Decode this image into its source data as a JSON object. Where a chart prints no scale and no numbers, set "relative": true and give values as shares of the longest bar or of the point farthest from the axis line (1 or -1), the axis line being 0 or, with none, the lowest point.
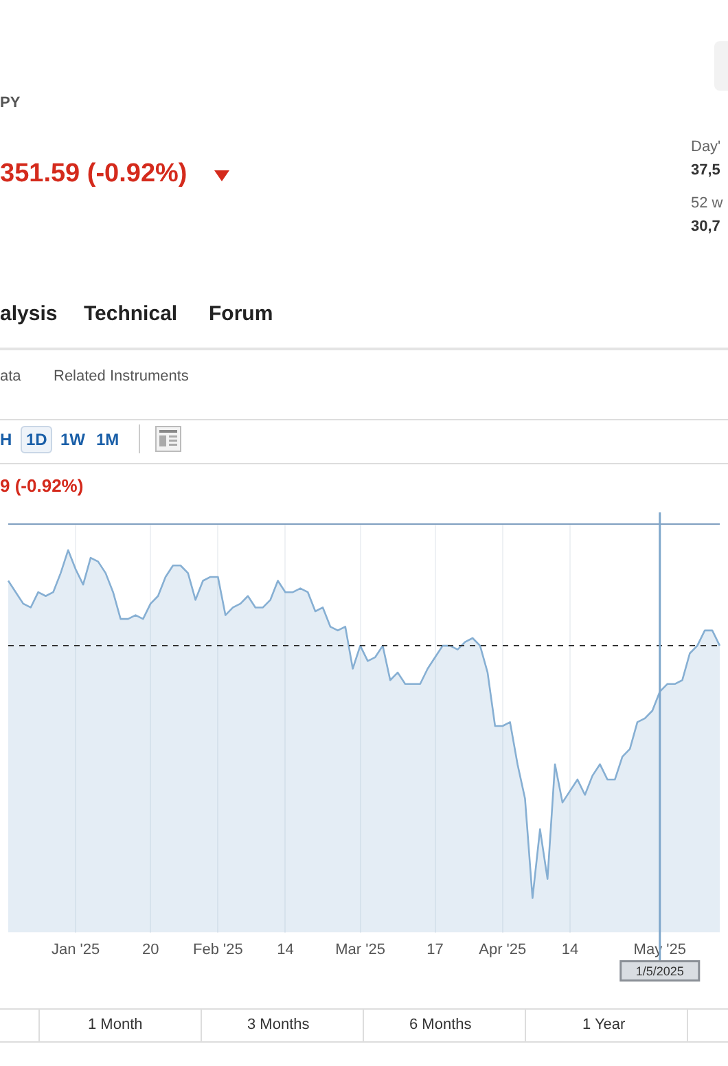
{
  "chart_data": {
    "type": "area",
    "relative": true,
    "grid": "x",
    "legend": false,
    "categories": [
      null,
      null,
      null,
      null,
      null,
      null,
      null,
      null,
      null,
      "Jan '25",
      null,
      null,
      null,
      null,
      null,
      null,
      null,
      null,
      null,
      "20",
      null,
      null,
      null,
      null,
      null,
      null,
      null,
      null,
      "Feb '25",
      null,
      null,
      null,
      null,
      null,
      null,
      null,
      null,
      "14",
      null,
      null,
      null,
      null,
      null,
      null,
      null,
      null,
      null,
      "Mar '25",
      null,
      null,
      null,
      null,
      null,
      null,
      null,
      null,
      null,
      "17",
      null,
      null,
      null,
      null,
      null,
      null,
      null,
      null,
      "Apr '25",
      null,
      null,
      null,
      null,
      null,
      null,
      null,
      null,
      "14",
      null,
      null,
      null,
      null,
      null,
      null,
      null,
      null,
      null,
      null,
      null,
      "May '25",
      null,
      null,
      null,
      null,
      null,
      null,
      null,
      null
    ],
    "series": [
      {
        "color": "#86afd3",
        "values": [
          0.92,
          0.89,
          0.86,
          0.85,
          0.89,
          0.88,
          0.89,
          0.94,
          1.0,
          0.95,
          0.91,
          0.98,
          0.97,
          0.94,
          0.89,
          0.82,
          0.82,
          0.83,
          0.82,
          0.86,
          0.88,
          0.93,
          0.96,
          0.96,
          0.94,
          0.87,
          0.92,
          0.93,
          0.93,
          0.83,
          0.85,
          0.86,
          0.88,
          0.85,
          0.85,
          0.87,
          0.92,
          0.89,
          0.89,
          0.9,
          0.89,
          0.84,
          0.85,
          0.8,
          0.79,
          0.8,
          0.69,
          0.75,
          0.71,
          0.72,
          0.75,
          0.66,
          0.68,
          0.65,
          0.65,
          0.65,
          0.69,
          0.72,
          0.75,
          0.75,
          0.74,
          0.76,
          0.77,
          0.75,
          0.68,
          0.54,
          0.54,
          0.55,
          0.44,
          0.35,
          0.09,
          0.27,
          0.14,
          0.44,
          0.34,
          0.37,
          0.4,
          0.36,
          0.41,
          0.44,
          0.4,
          0.4,
          0.46,
          0.48,
          0.55,
          0.56,
          0.58,
          0.63,
          0.65,
          0.65,
          0.66,
          0.73,
          0.75,
          0.79,
          0.79,
          0.75
        ]
      }
    ],
    "ref_lines": [
      {
        "axis": "y",
        "value": 0.75,
        "line_style": "dashed",
        "color": "#333333"
      },
      {
        "axis": "x",
        "value": "May '25",
        "label": "1/5/2025",
        "color": "#7fa7cb",
        "line_style": "solid"
      }
    ],
    "annotations": [
      "PY",
      "351.59 (-0.92%)",
      "Day'",
      "37,5",
      "52 w",
      "30,7",
      "alysis",
      "Technical",
      "Forum",
      "ata",
      "Related Instruments",
      "H",
      "1D",
      "1W",
      "1M",
      "9 (-0.92%)",
      "1 Month",
      "3 Months",
      "6 Months",
      "1 Year"
    ]
  }
}
